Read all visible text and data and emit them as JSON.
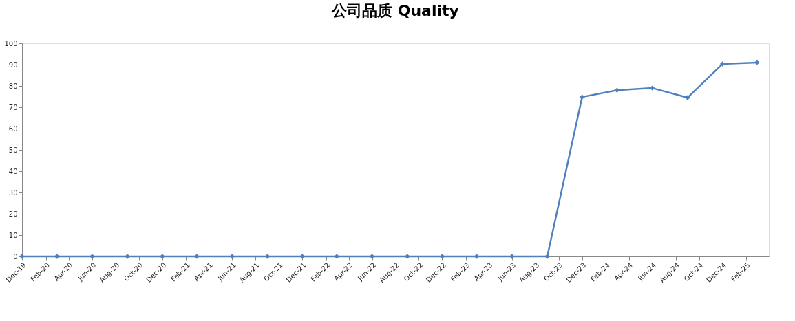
{
  "chart_data": {
    "type": "line",
    "title": "公司品质 Quality",
    "x": [
      "2019-12",
      "2020-03",
      "2020-06",
      "2020-09",
      "2020-12",
      "2021-03",
      "2021-06",
      "2021-09",
      "2021-12",
      "2022-03",
      "2022-06",
      "2022-09",
      "2022-12",
      "2023-03",
      "2023-06",
      "2023-09",
      "2023-12",
      "2024-03",
      "2024-06",
      "2024-09",
      "2024-12",
      "2025-03"
    ],
    "series": [
      {
        "color": "#4f81bd",
        "values": [
          0,
          0,
          0,
          0,
          0,
          0,
          0,
          0,
          0,
          0,
          0,
          0,
          0,
          0,
          0,
          0,
          74.8,
          78,
          79,
          74.5,
          90.3,
          91
        ]
      }
    ],
    "xlim": [
      "2019-12",
      "2025-04"
    ],
    "xticks": [
      {
        "value": "2019-12",
        "label": "Dec-19"
      },
      {
        "value": "2020-02",
        "label": "Feb-20"
      },
      {
        "value": "2020-04",
        "label": "Apr-20"
      },
      {
        "value": "2020-06",
        "label": "Jun-20"
      },
      {
        "value": "2020-08",
        "label": "Aug-20"
      },
      {
        "value": "2020-10",
        "label": "Oct-20"
      },
      {
        "value": "2020-12",
        "label": "Dec-20"
      },
      {
        "value": "2021-02",
        "label": "Feb-21"
      },
      {
        "value": "2021-04",
        "label": "Apr-21"
      },
      {
        "value": "2021-06",
        "label": "Jun-21"
      },
      {
        "value": "2021-08",
        "label": "Aug-21"
      },
      {
        "value": "2021-10",
        "label": "Oct-21"
      },
      {
        "value": "2021-12",
        "label": "Dec-21"
      },
      {
        "value": "2022-02",
        "label": "Feb-22"
      },
      {
        "value": "2022-04",
        "label": "Apr-22"
      },
      {
        "value": "2022-06",
        "label": "Jun-22"
      },
      {
        "value": "2022-08",
        "label": "Aug-22"
      },
      {
        "value": "2022-10",
        "label": "Oct-22"
      },
      {
        "value": "2022-12",
        "label": "Dec-22"
      },
      {
        "value": "2023-02",
        "label": "Feb-23"
      },
      {
        "value": "2023-04",
        "label": "Apr-23"
      },
      {
        "value": "2023-06",
        "label": "Jun-23"
      },
      {
        "value": "2023-08",
        "label": "Aug-23"
      },
      {
        "value": "2023-10",
        "label": "Oct-23"
      },
      {
        "value": "2023-12",
        "label": "Dec-23"
      },
      {
        "value": "2024-02",
        "label": "Feb-24"
      },
      {
        "value": "2024-04",
        "label": "Apr-24"
      },
      {
        "value": "2024-06",
        "label": "Jun-24"
      },
      {
        "value": "2024-08",
        "label": "Aug-24"
      },
      {
        "value": "2024-10",
        "label": "Oct-24"
      },
      {
        "value": "2024-12",
        "label": "Dec-24"
      },
      {
        "value": "2025-02",
        "label": "Feb-25"
      }
    ],
    "ylim": [
      0,
      100
    ],
    "yticks": [
      0,
      10,
      20,
      30,
      40,
      50,
      60,
      70,
      80,
      90,
      100
    ],
    "grid": false,
    "legend": false,
    "marker": "diamond",
    "line_style": "solid"
  }
}
